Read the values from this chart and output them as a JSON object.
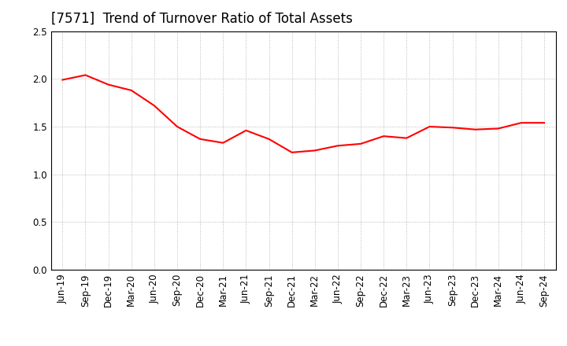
{
  "title": "[7571]  Trend of Turnover Ratio of Total Assets",
  "x_labels": [
    "Jun-19",
    "Sep-19",
    "Dec-19",
    "Mar-20",
    "Jun-20",
    "Sep-20",
    "Dec-20",
    "Mar-21",
    "Jun-21",
    "Sep-21",
    "Dec-21",
    "Mar-22",
    "Jun-22",
    "Sep-22",
    "Dec-22",
    "Mar-23",
    "Jun-23",
    "Sep-23",
    "Dec-23",
    "Mar-24",
    "Jun-24",
    "Sep-24"
  ],
  "values": [
    1.99,
    2.04,
    1.94,
    1.88,
    1.72,
    1.5,
    1.37,
    1.33,
    1.46,
    1.37,
    1.23,
    1.25,
    1.3,
    1.32,
    1.4,
    1.38,
    1.5,
    1.49,
    1.47,
    1.48,
    1.54,
    1.54
  ],
  "line_color": "#ff0000",
  "line_width": 1.5,
  "ylim": [
    0.0,
    2.5
  ],
  "yticks": [
    0.0,
    0.5,
    1.0,
    1.5,
    2.0,
    2.5
  ],
  "grid_color": "#aaaaaa",
  "grid_linestyle": "dotted",
  "grid_linewidth": 0.6,
  "background_color": "#ffffff",
  "title_fontsize": 12,
  "tick_fontsize": 8.5,
  "spine_color": "#000000"
}
